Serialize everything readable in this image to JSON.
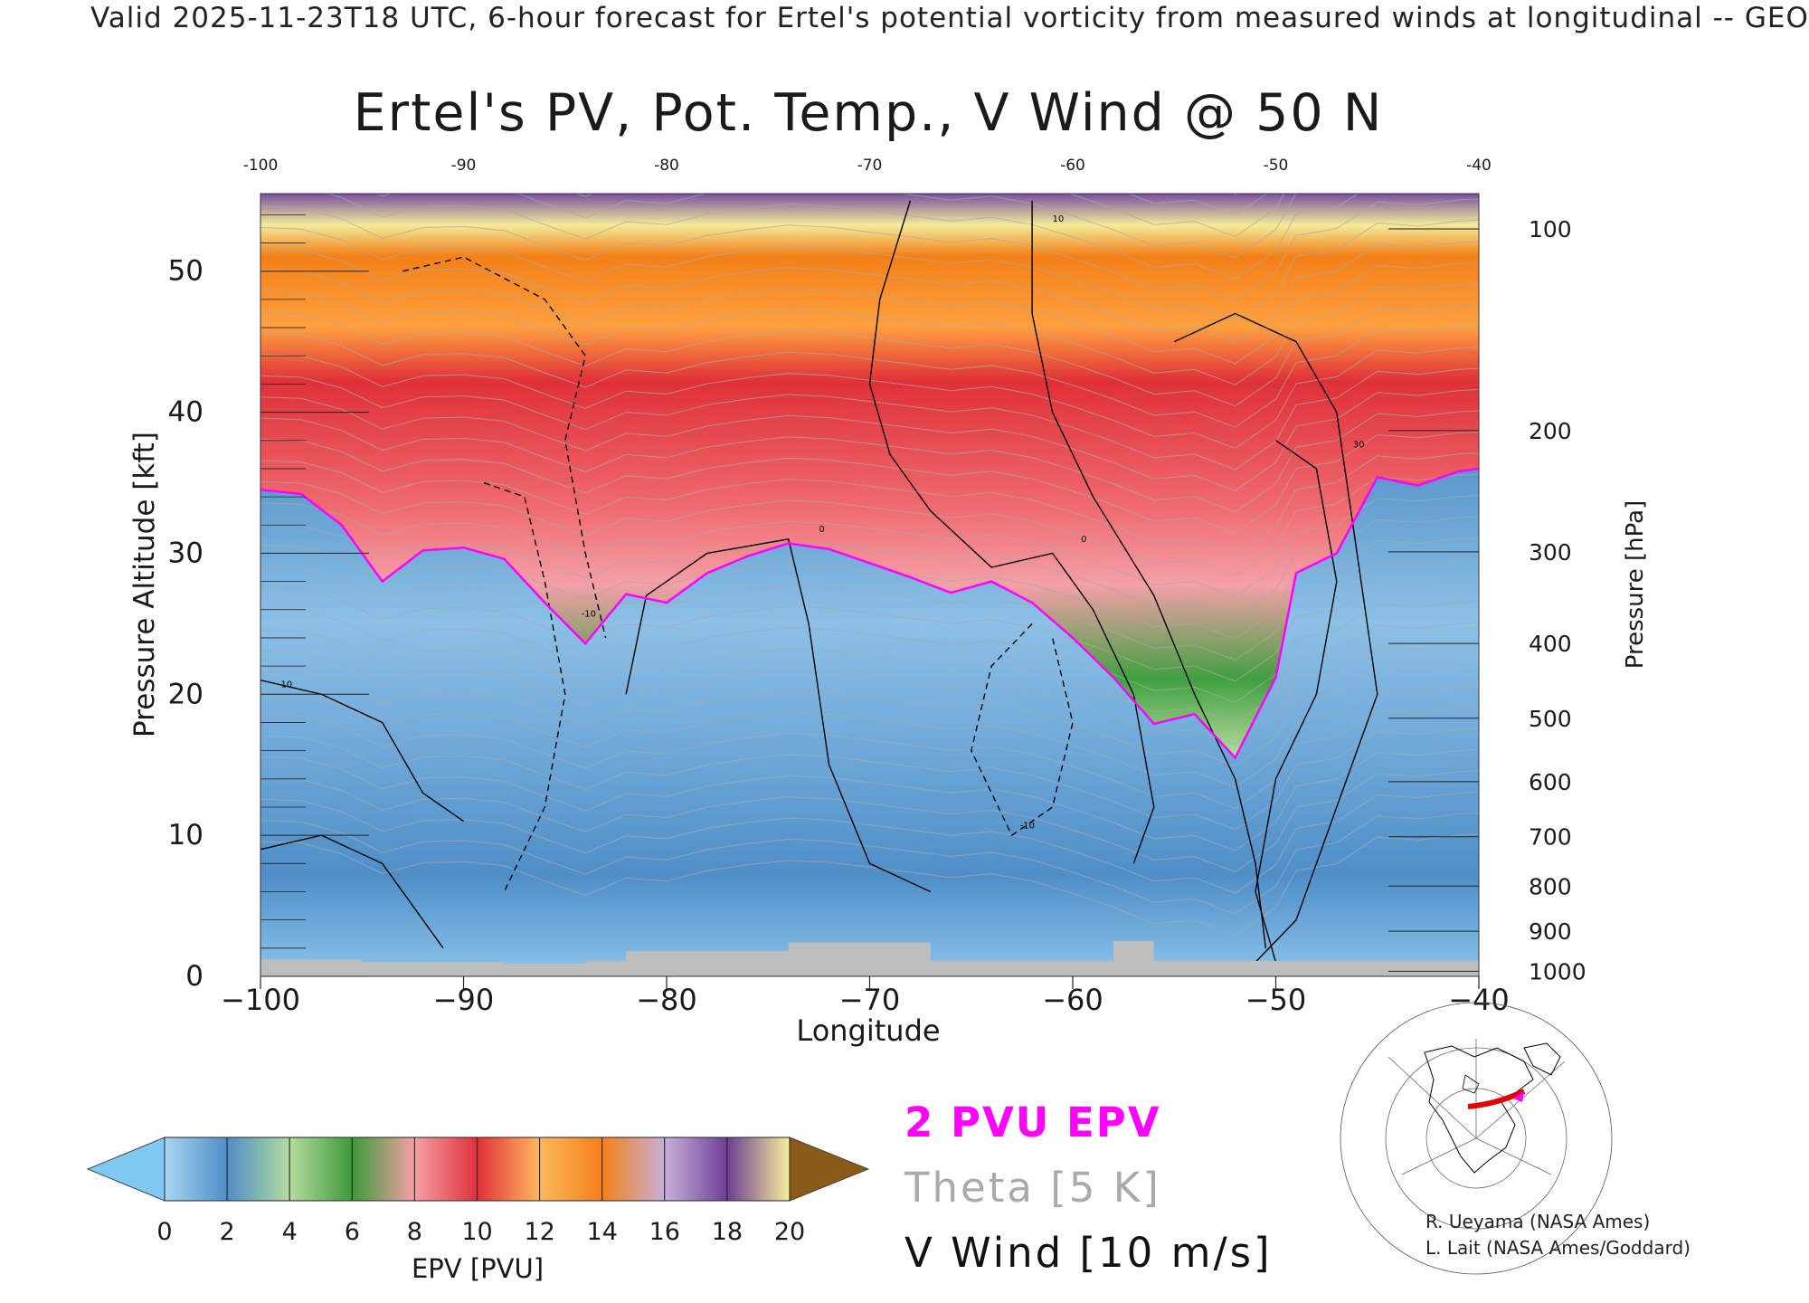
{
  "header": {
    "valid_line": "Valid 2025-11-23T18 UTC, 6-hour forecast for Ertel's potential vorticity from measured winds at longitudinal -- GEO"
  },
  "chart_data": {
    "type": "heatmap",
    "title": "Ertel's PV, Pot. Temp., V Wind @ 50 N",
    "xlabel": "Longitude",
    "ylabel_left": "Pressure Altitude [kft]",
    "ylabel_right": "Pressure [hPa]",
    "xlim": [
      -100,
      -40
    ],
    "ylim_kft": [
      0,
      55.5
    ],
    "x_ticks": [
      -100,
      -90,
      -80,
      -70,
      -60,
      -50,
      -40
    ],
    "x_tick_labels": [
      "−100",
      "−90",
      "−80",
      "−70",
      "−60",
      "−50",
      "−40"
    ],
    "x_top_tick_labels": [
      "-100",
      "-90",
      "-80",
      "-70",
      "-60",
      "-50",
      "-40"
    ],
    "y_left_ticks": [
      0,
      10,
      20,
      30,
      40,
      50
    ],
    "y_left_tick_labels": [
      "0",
      "10",
      "20",
      "30",
      "40",
      "50"
    ],
    "y_right_ticks": [
      {
        "label": "100",
        "kft": 53.0
      },
      {
        "label": "200",
        "kft": 38.7
      },
      {
        "label": "300",
        "kft": 30.1
      },
      {
        "label": "400",
        "kft": 23.6
      },
      {
        "label": "500",
        "kft": 18.3
      },
      {
        "label": "600",
        "kft": 13.8
      },
      {
        "label": "700",
        "kft": 9.9
      },
      {
        "label": "800",
        "kft": 6.4
      },
      {
        "label": "900",
        "kft": 3.2
      },
      {
        "label": "1000",
        "kft": 0.36
      }
    ],
    "pv_2pvu_boundary": [
      [
        -100,
        34.5
      ],
      [
        -98,
        34.2
      ],
      [
        -96,
        32.0
      ],
      [
        -94,
        28.0
      ],
      [
        -92,
        30.2
      ],
      [
        -90,
        30.4
      ],
      [
        -88,
        29.6
      ],
      [
        -86,
        26.5
      ],
      [
        -84,
        23.6
      ],
      [
        -82,
        27.1
      ],
      [
        -80,
        26.5
      ],
      [
        -78,
        28.6
      ],
      [
        -76,
        29.8
      ],
      [
        -74,
        30.7
      ],
      [
        -72,
        30.3
      ],
      [
        -70,
        29.3
      ],
      [
        -68,
        28.3
      ],
      [
        -66,
        27.2
      ],
      [
        -64,
        28.0
      ],
      [
        -62,
        26.5
      ],
      [
        -60,
        24.0
      ],
      [
        -58,
        21.2
      ],
      [
        -56,
        17.9
      ],
      [
        -54,
        18.6
      ],
      [
        -52,
        15.5
      ],
      [
        -50,
        21.2
      ],
      [
        -49,
        28.6
      ],
      [
        -47,
        30.0
      ],
      [
        -45,
        35.4
      ],
      [
        -43,
        34.8
      ],
      [
        -41,
        35.8
      ],
      [
        -40,
        36.0
      ]
    ],
    "v_wind_contours": [
      {
        "label": "0",
        "x": -72.5,
        "kft": 31.5
      },
      {
        "label": "0",
        "x": -59.6,
        "kft": 30.8
      },
      {
        "label": "30",
        "x": -46.2,
        "kft": 37.5
      },
      {
        "label": "-10",
        "x": -84.2,
        "kft": 25.5
      },
      {
        "label": "-10",
        "x": -62.6,
        "kft": 10.5
      },
      {
        "label": "10",
        "x": -61.0,
        "kft": 53.5
      },
      {
        "label": "10",
        "x": -99.0,
        "kft": 20.5
      }
    ],
    "colorbar": {
      "label": "EPV [PVU]",
      "ticks": [
        "0",
        "2",
        "4",
        "6",
        "8",
        "10",
        "12",
        "14",
        "16",
        "18",
        "20"
      ],
      "under_color": "#7fc9f5",
      "over_color": "#8a5a18",
      "colors": [
        "#a8d6ef",
        "#4f8ec8",
        "#b5dca0",
        "#3d9a38",
        "#f4a0a8",
        "#e03038",
        "#ffb860",
        "#f48018",
        "#c7b0d8",
        "#6e3f95",
        "#f8ee9a"
      ]
    },
    "legend": {
      "pv_label": "2 PVU EPV",
      "pv_color": "#ff00ff",
      "theta_label": "Theta [5 K]",
      "theta_color": "#aaaaaa",
      "wind_label": "V Wind [10 m/s]",
      "wind_color": "#000000"
    }
  },
  "credits": {
    "line1": "R. Ueyama (NASA Ames)",
    "line2": "L. Lait (NASA Ames/Goddard)"
  }
}
